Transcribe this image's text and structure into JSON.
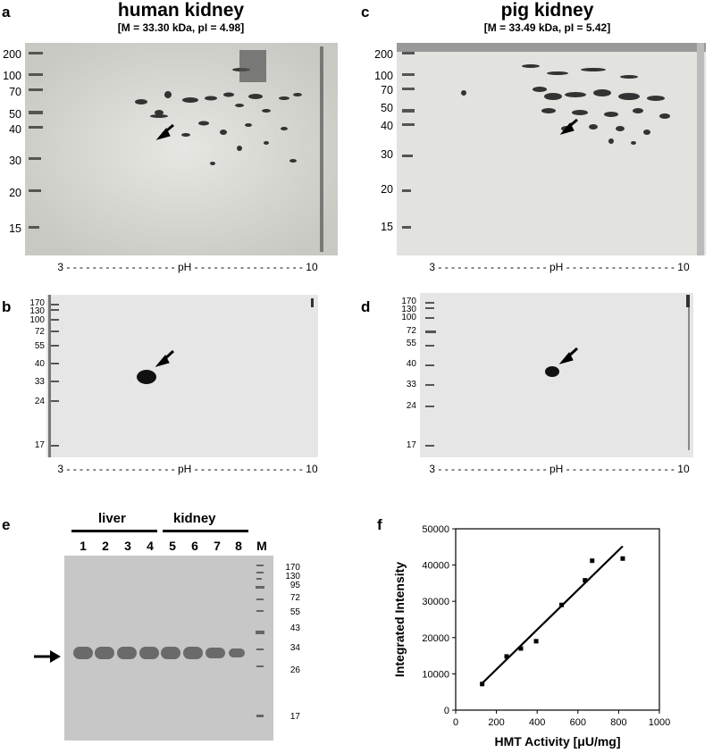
{
  "panels": {
    "a": {
      "letter": "a",
      "title": "human kidney",
      "subtitle": "[M = 33.30 kDa, pI = 4.98]",
      "markers": [
        "200",
        "100",
        "70",
        "50",
        "40",
        "30",
        "20",
        "15"
      ],
      "axis": "3 - - - - - - - - - - - - - - - - - pH - - - - - - - - - - - - - - - - - 10"
    },
    "b": {
      "letter": "b",
      "markers": [
        "170",
        "130",
        "100",
        "72",
        "55",
        "40",
        "33",
        "24",
        "17"
      ],
      "axis": "3 - - - - - - - - - - - - - - - - - pH - - - - - - - - - - - - - - - - - 10"
    },
    "c": {
      "letter": "c",
      "title": "pig kidney",
      "subtitle": "[M = 33.49 kDa, pI = 5.42]",
      "markers": [
        "200",
        "100",
        "70",
        "50",
        "40",
        "30",
        "20",
        "15"
      ],
      "axis": "3 - - - - - - - - - - - - - - - - - pH - - - - - - - - - - - - - - - - - 10"
    },
    "d": {
      "letter": "d",
      "markers": [
        "170",
        "130",
        "100",
        "72",
        "55",
        "40",
        "33",
        "24",
        "17"
      ],
      "axis": "3 - - - - - - - - - - - - - - - - - pH - - - - - - - - - - - - - - - - - 10"
    },
    "e": {
      "letter": "e",
      "group_liver": "liver",
      "group_kidney": "kidney",
      "lanes": [
        "1",
        "2",
        "3",
        "4",
        "5",
        "6",
        "7",
        "8",
        "M"
      ],
      "markers": [
        "170",
        "130",
        "95",
        "72",
        "55",
        "43",
        "34",
        "26",
        "17"
      ]
    },
    "f": {
      "letter": "f"
    }
  },
  "chart_data": {
    "type": "scatter",
    "xlabel": "HMT Activity [μU/mg]",
    "ylabel": "Integrated Intensity",
    "xlim": [
      0,
      1000
    ],
    "ylim": [
      0,
      50000
    ],
    "xticks": [
      "0",
      "200",
      "400",
      "600",
      "800",
      "1000"
    ],
    "yticks": [
      "0",
      "10000",
      "20000",
      "30000",
      "40000",
      "50000"
    ],
    "points": [
      {
        "x": 130,
        "y": 7200
      },
      {
        "x": 250,
        "y": 14800
      },
      {
        "x": 320,
        "y": 17000
      },
      {
        "x": 395,
        "y": 19000
      },
      {
        "x": 520,
        "y": 29000
      },
      {
        "x": 635,
        "y": 35800
      },
      {
        "x": 670,
        "y": 41200
      },
      {
        "x": 820,
        "y": 41800
      }
    ],
    "fit": [
      {
        "x": 130,
        "y": 7400
      },
      {
        "x": 820,
        "y": 45200
      }
    ],
    "grid": false
  }
}
